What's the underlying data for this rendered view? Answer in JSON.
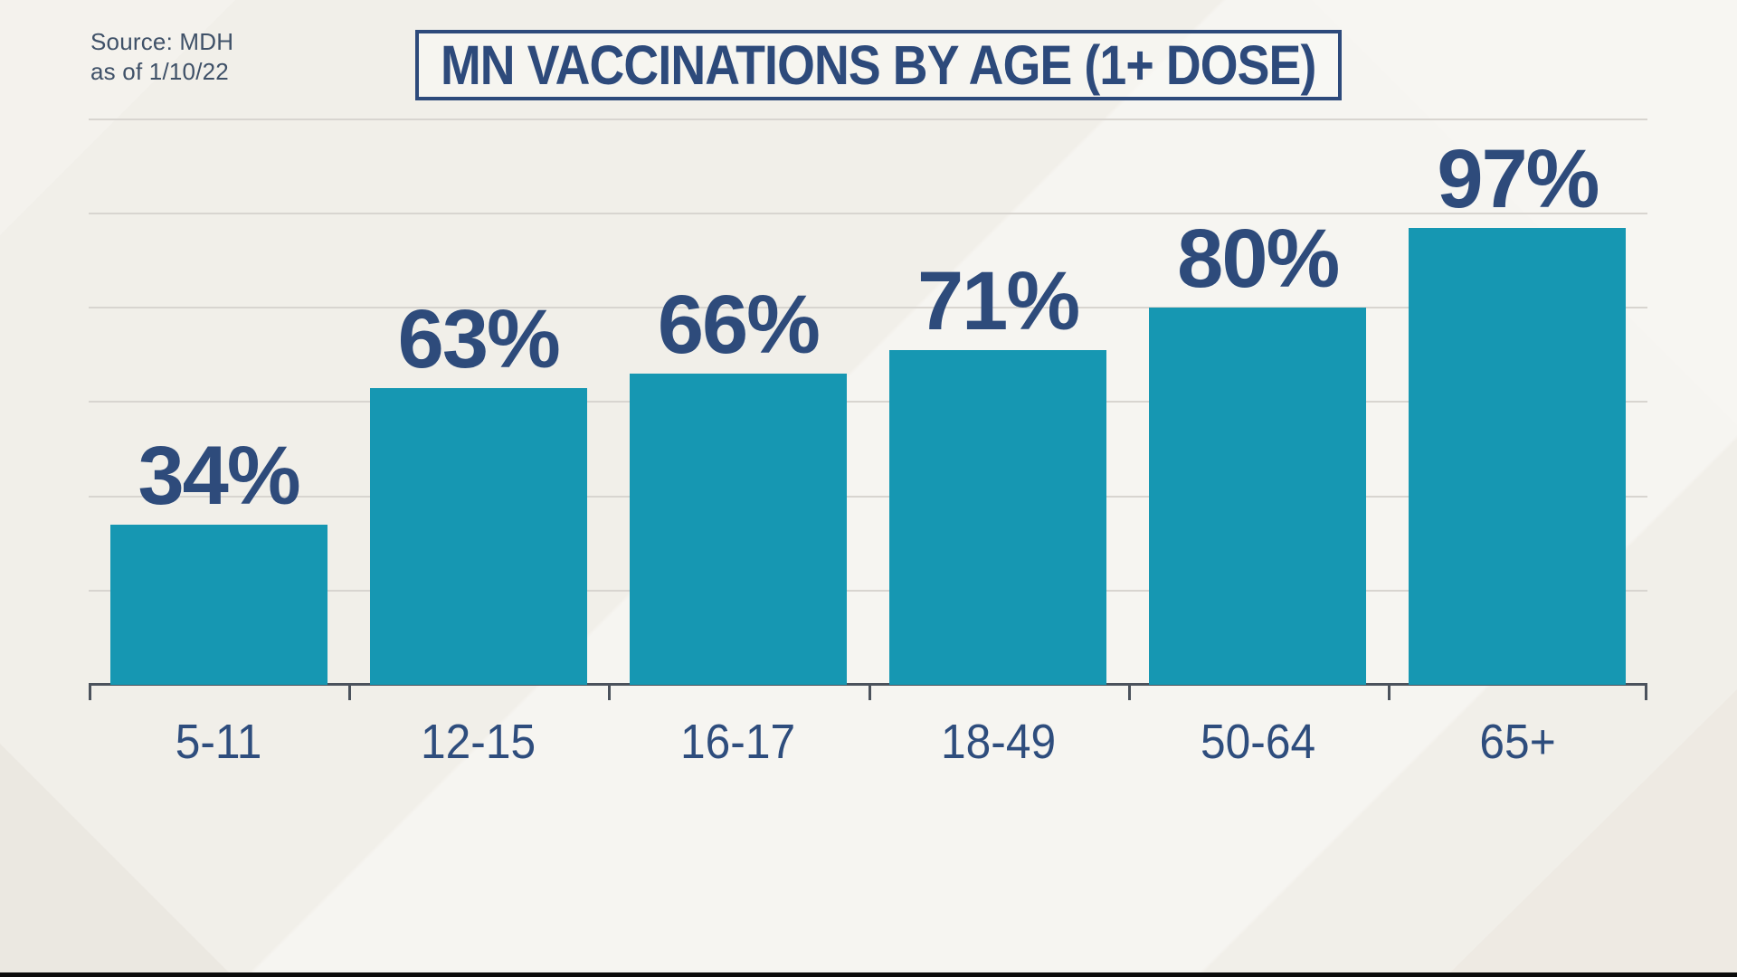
{
  "title": "MN VACCINATIONS BY AGE (1+ DOSE)",
  "source": {
    "line1": "Source: MDH",
    "line2": "as of 1/10/22"
  },
  "colors": {
    "bar": "#1697B2",
    "value_label": "#2E4B7B",
    "category_label": "#2E4D7D",
    "title": "#2D4A7B",
    "title_border": "#2D4A7B",
    "source_text": "#3F5168",
    "axis": "#4B525C",
    "gridline": "#D8D5D0",
    "background": "#F1EFE9",
    "bottom_strip": "#0B0B0B"
  },
  "chart_data": {
    "type": "bar",
    "title": "MN VACCINATIONS BY AGE (1+ DOSE)",
    "categories": [
      "5-11",
      "12-15",
      "16-17",
      "18-49",
      "50-64",
      "65+"
    ],
    "values": [
      34,
      63,
      66,
      71,
      80,
      97
    ],
    "value_labels": [
      "34%",
      "63%",
      "66%",
      "71%",
      "80%",
      "97%"
    ],
    "xlabel": "",
    "ylabel": "",
    "ylim": [
      0,
      120
    ],
    "grid": true,
    "gridline_step_pct": 20,
    "legend_position": "none"
  }
}
